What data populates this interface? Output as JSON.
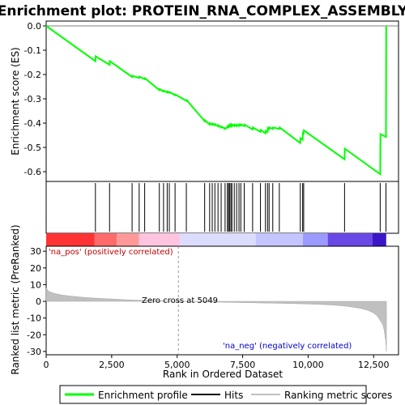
{
  "chart_data": {
    "type": "line",
    "title": "Enrichment plot: PROTEIN_RNA_COMPLEX_ASSEMBLY",
    "x_range": [
      0,
      13450
    ],
    "x_ticks": [
      0,
      2500,
      5000,
      7500,
      10000,
      12500
    ],
    "x_tick_labels": [
      "0",
      "2,500",
      "5,000",
      "7,500",
      "10,000",
      "12,500"
    ],
    "xlabel": "Rank in Ordered Dataset",
    "es_panel": {
      "ylabel": "Enrichment score (ES)",
      "ylim": [
        -0.64,
        0.02
      ],
      "y_ticks": [
        0.0,
        -0.1,
        -0.2,
        -0.3,
        -0.4,
        -0.5,
        -0.6
      ],
      "y_tick_labels": [
        "0.0",
        "-0.1",
        "-0.2",
        "-0.3",
        "-0.4",
        "-0.5",
        "-0.6"
      ],
      "series": [
        {
          "name": "Enrichment profile",
          "color": "#00ff00",
          "x": [
            0,
            1880,
            1890,
            2420,
            2430,
            3280,
            3290,
            3550,
            3560,
            3760,
            3770,
            4320,
            4330,
            4480,
            4490,
            4620,
            4630,
            4700,
            4710,
            4920,
            4930,
            5350,
            5360,
            6050,
            6060,
            6240,
            6250,
            6340,
            6350,
            6440,
            6450,
            6560,
            6570,
            6680,
            6690,
            6830,
            6840,
            6920,
            6930,
            6960,
            6970,
            7000,
            7010,
            7050,
            7060,
            7090,
            7100,
            7180,
            7190,
            7270,
            7280,
            7360,
            7370,
            7430,
            7440,
            7560,
            7570,
            7880,
            7890,
            8180,
            8190,
            8370,
            8380,
            8450,
            8460,
            8510,
            8520,
            8650,
            8660,
            8900,
            8910,
            9700,
            9710,
            9790,
            9800,
            9830,
            9840,
            11390,
            11400,
            12750,
            12760,
            12970,
            12980
          ],
          "y": [
            0.0,
            -0.145,
            -0.125,
            -0.16,
            -0.145,
            -0.21,
            -0.205,
            -0.214,
            -0.209,
            -0.219,
            -0.215,
            -0.264,
            -0.26,
            -0.27,
            -0.266,
            -0.274,
            -0.27,
            -0.275,
            -0.272,
            -0.285,
            -0.282,
            -0.308,
            -0.305,
            -0.392,
            -0.388,
            -0.406,
            -0.4,
            -0.407,
            -0.402,
            -0.408,
            -0.404,
            -0.413,
            -0.409,
            -0.418,
            -0.414,
            -0.424,
            -0.42,
            -0.419,
            -0.413,
            -0.416,
            -0.41,
            -0.413,
            -0.407,
            -0.412,
            -0.406,
            -0.411,
            -0.406,
            -0.412,
            -0.406,
            -0.412,
            -0.406,
            -0.412,
            -0.405,
            -0.41,
            -0.405,
            -0.412,
            -0.406,
            -0.426,
            -0.418,
            -0.436,
            -0.428,
            -0.442,
            -0.432,
            -0.437,
            -0.42,
            -0.425,
            -0.418,
            -0.424,
            -0.418,
            -0.424,
            -0.418,
            -0.482,
            -0.462,
            -0.468,
            -0.44,
            -0.442,
            -0.43,
            -0.549,
            -0.505,
            -0.61,
            -0.445,
            -0.457,
            0.0
          ]
        }
      ]
    },
    "hits": [
      1880,
      2420,
      3280,
      3550,
      3760,
      4320,
      4480,
      4620,
      4700,
      4920,
      5350,
      6050,
      6240,
      6340,
      6440,
      6560,
      6680,
      6830,
      6920,
      6960,
      7000,
      7050,
      7090,
      7180,
      7270,
      7360,
      7430,
      7560,
      7880,
      8180,
      8370,
      8450,
      8510,
      8650,
      8900,
      9700,
      9790,
      9830,
      11390,
      12750,
      12970
    ],
    "metric_panel": {
      "ylabel": "Ranked list metric (PreRanked)",
      "ylim": [
        -32,
        33
      ],
      "y_ticks": [
        30,
        20,
        10,
        0,
        -10,
        -20,
        -30
      ],
      "y_tick_labels": [
        "30",
        "20",
        "10",
        "0",
        "-10",
        "-20",
        "-30"
      ],
      "series": [
        {
          "name": "Ranking metric scores",
          "color": "#b0b0b0",
          "x": [
            0,
            100,
            300,
            600,
            1000,
            1500,
            2000,
            2500,
            3000,
            3500,
            4000,
            4500,
            5049,
            6000,
            7000,
            8000,
            9000,
            10000,
            10500,
            11000,
            11500,
            12000,
            12300,
            12500,
            12650,
            12750,
            12850,
            12900,
            12960,
            12990
          ],
          "y": [
            8,
            6,
            4.8,
            3.8,
            3.0,
            2.3,
            1.8,
            1.4,
            1.0,
            0.7,
            0.45,
            0.25,
            0,
            -0.3,
            -0.6,
            -0.9,
            -1.2,
            -1.6,
            -1.9,
            -2.3,
            -3.0,
            -4.2,
            -5.5,
            -7.0,
            -9.0,
            -11.5,
            -14.0,
            -17.0,
            -24.0,
            -30.0
          ]
        }
      ],
      "annotations": {
        "pos": "'na_pos' (positively correlated)",
        "zero": "Zero cross at 5049",
        "neg": "'na_neg' (negatively correlated)"
      },
      "zero_cross": 5049
    },
    "color_band": {
      "stops": [
        "#ff3333",
        "#ff6a6a",
        "#ff9999",
        "#ffc4e0",
        "#dcdcff",
        "#c4c4ff",
        "#9a9aff",
        "#6a48e6",
        "#3a16c8"
      ],
      "bounds": [
        0,
        1850,
        2700,
        3550,
        5100,
        8000,
        9800,
        10750,
        12450,
        12980
      ]
    },
    "legend": [
      {
        "label": "Enrichment profile",
        "kind": "line",
        "color": "#00ff00"
      },
      {
        "label": "Hits",
        "kind": "line",
        "color": "#000000"
      },
      {
        "label": "Ranking metric scores",
        "kind": "line",
        "color": "#c0c0c0"
      }
    ]
  }
}
